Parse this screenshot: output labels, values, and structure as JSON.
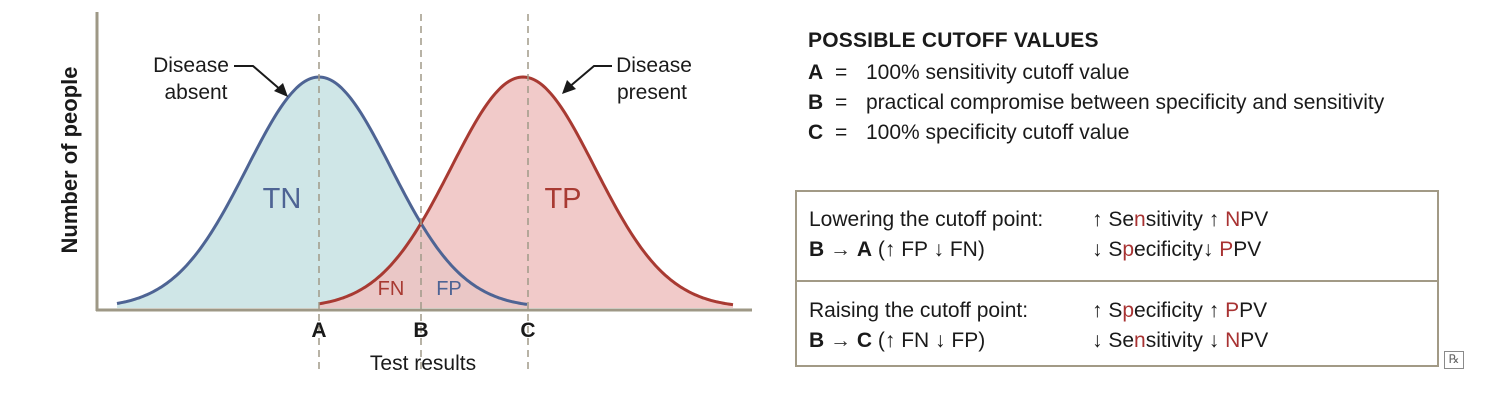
{
  "diagram": {
    "y_axis_label": "Number of people",
    "x_axis_label": "Test results",
    "curve_absent_label": [
      "Disease",
      "absent"
    ],
    "curve_present_label": [
      "Disease",
      "present"
    ],
    "region_labels": {
      "tn": "TN",
      "tp": "TP",
      "fn": "FN",
      "fp": "FP"
    },
    "cutoff_labels": [
      "A",
      "B",
      "C"
    ],
    "colors": {
      "absent_line": "#4e6494",
      "absent_fill": "#cfe6e7",
      "present_line": "#a83a32",
      "present_fill": "#efc1bf",
      "axis": "#9e9886",
      "cutoff_line": "#a09a88"
    }
  },
  "legend": {
    "title": "POSSIBLE CUTOFF VALUES",
    "items": [
      {
        "key": "A",
        "eq": "=",
        "text": "100% sensitivity cutoff value"
      },
      {
        "key": "B",
        "eq": "=",
        "text": "practical compromise between specificity and sensitivity"
      },
      {
        "key": "C",
        "eq": "=",
        "text": "100% specificity cutoff value"
      }
    ]
  },
  "table": {
    "lowering": {
      "title": "Lowering the cutoff point:",
      "from": "B",
      "arrow": "→",
      "to": "A",
      "change": "(↑ FP ↓ FN)",
      "effect_1": {
        "arrow": "↑",
        "pre": "Se",
        "hl": "n",
        "post": "sitivity",
        "arrow2": "↑",
        "hl2": "N",
        "post2": "PV"
      },
      "effect_2": {
        "arrow": "↓",
        "pre": "S",
        "hl": "p",
        "post": "ecificity",
        "arrow2": "↓",
        "hl2": "P",
        "post2": "PV"
      }
    },
    "raising": {
      "title": "Raising the cutoff point:",
      "from": "B",
      "arrow": "→",
      "to": "C",
      "change": "(↑ FN ↓ FP)",
      "effect_1": {
        "arrow": "↑",
        "pre": "S",
        "hl": "p",
        "post": "ecificity",
        "arrow2": "↑",
        "hl2": "P",
        "post2": "PV"
      },
      "effect_2": {
        "arrow": "↓",
        "pre": "Se",
        "hl": "n",
        "post": "sitivity",
        "arrow2": "↓",
        "hl2": "N",
        "post2": "PV"
      }
    }
  },
  "rx_icon": "℞"
}
